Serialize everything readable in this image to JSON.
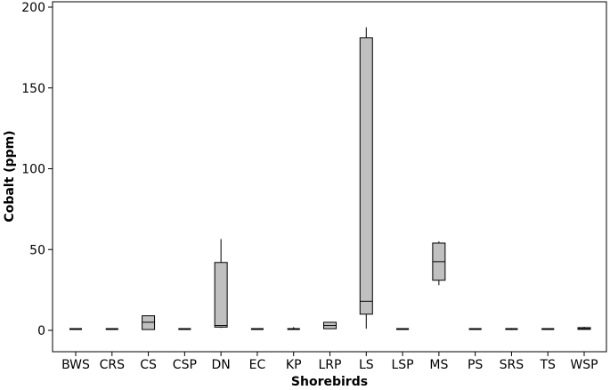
{
  "chart_data": {
    "type": "boxplot",
    "title": "",
    "xlabel": "Shorebirds",
    "ylabel": "Cobalt (ppm)",
    "ylim": [
      0,
      200
    ],
    "yticks": [
      0,
      50,
      100,
      150,
      200
    ],
    "grid": false,
    "box_color": "#c0c0c0",
    "categories": [
      "BWS",
      "CRS",
      "CS",
      "CSP",
      "DN",
      "EC",
      "KP",
      "LRP",
      "LS",
      "LSP",
      "MS",
      "PS",
      "SRS",
      "TS",
      "WSP"
    ],
    "boxes": [
      {
        "min": 0.8,
        "q1": 0.8,
        "median": 0.8,
        "q3": 0.8,
        "max": 0.8
      },
      {
        "min": 0.3,
        "q1": 0.5,
        "median": 0.8,
        "q3": 1.1,
        "max": 1.3
      },
      {
        "min": 0.5,
        "q1": 0.5,
        "median": 5.0,
        "q3": 9.0,
        "max": 9.0
      },
      {
        "min": 0.4,
        "q1": 0.5,
        "median": 0.8,
        "q3": 1.0,
        "max": 1.0
      },
      {
        "min": 1.5,
        "q1": 2.0,
        "median": 3.0,
        "q3": 42.0,
        "max": 56.5
      },
      {
        "min": 0.8,
        "q1": 0.8,
        "median": 0.8,
        "q3": 0.8,
        "max": 0.8
      },
      {
        "min": 0.5,
        "q1": 0.8,
        "median": 0.8,
        "q3": 1.0,
        "max": 2.0
      },
      {
        "min": 1.0,
        "q1": 1.0,
        "median": 3.0,
        "q3": 5.0,
        "max": 5.0
      },
      {
        "min": 1.0,
        "q1": 10.0,
        "median": 18.0,
        "q3": 181.0,
        "max": 187.5
      },
      {
        "min": 0.4,
        "q1": 0.5,
        "median": 0.8,
        "q3": 1.0,
        "max": 1.0
      },
      {
        "min": 28.0,
        "q1": 31.0,
        "median": 42.5,
        "q3": 54.0,
        "max": 55.0
      },
      {
        "min": 0.8,
        "q1": 0.8,
        "median": 0.8,
        "q3": 0.8,
        "max": 0.8
      },
      {
        "min": 0.2,
        "q1": 0.5,
        "median": 0.8,
        "q3": 1.1,
        "max": 1.4
      },
      {
        "min": 0.8,
        "q1": 0.8,
        "median": 0.8,
        "q3": 0.8,
        "max": 0.8
      },
      {
        "min": 0.3,
        "q1": 0.6,
        "median": 1.0,
        "q3": 1.7,
        "max": 2.2
      }
    ]
  }
}
